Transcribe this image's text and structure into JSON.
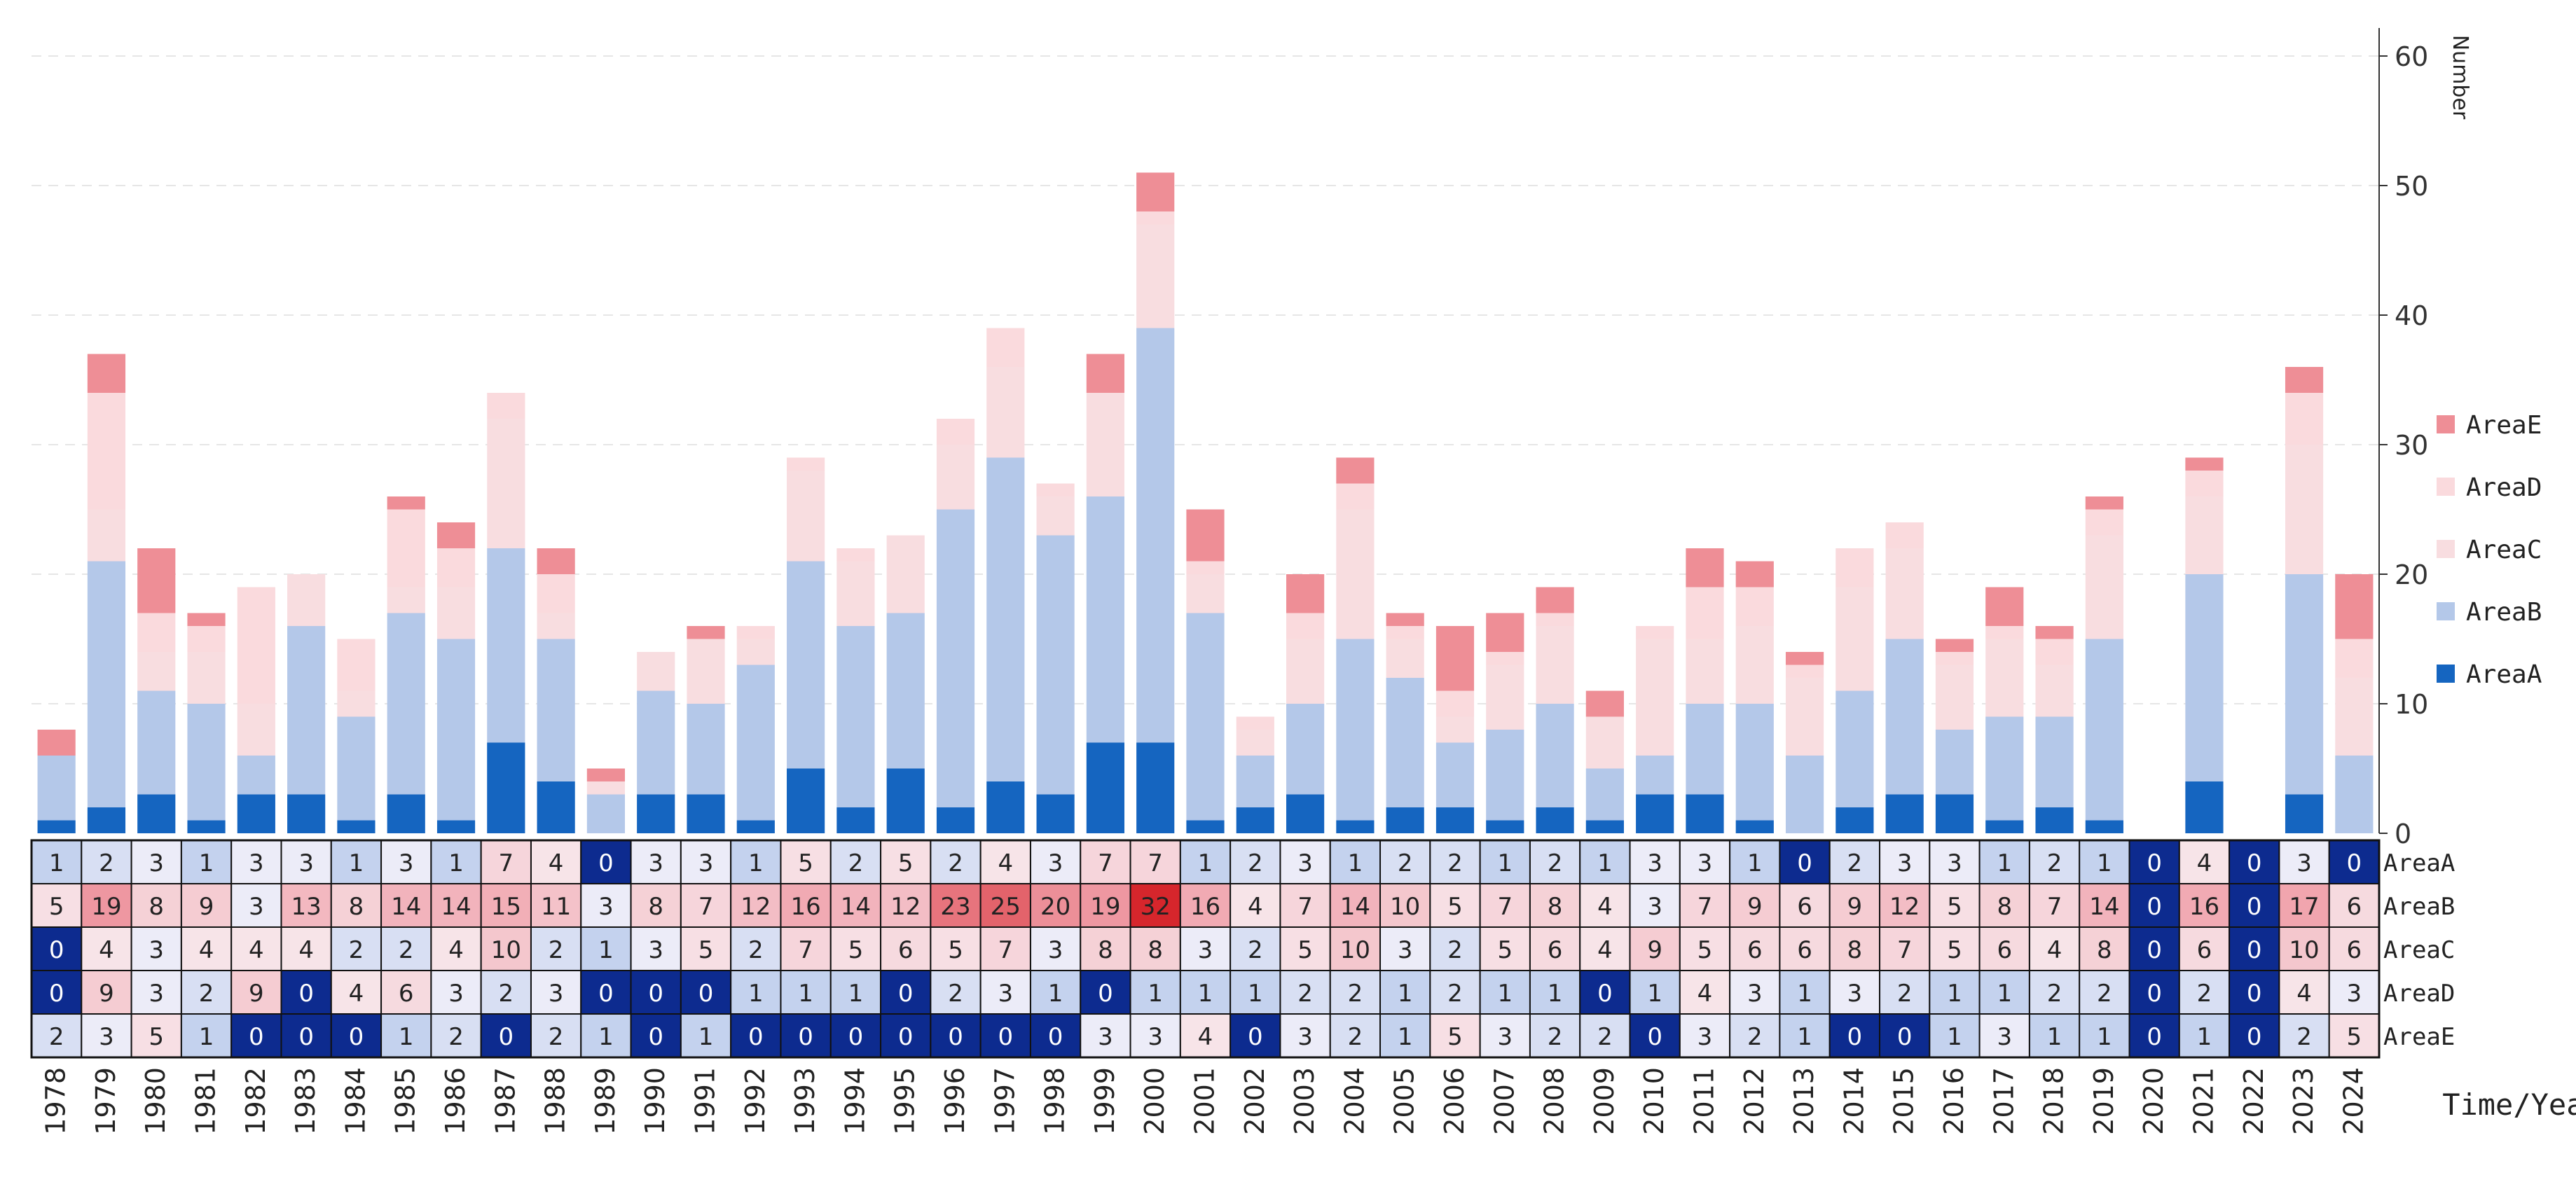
{
  "chart_data": {
    "type": "bar",
    "stacked": true,
    "title": "",
    "xlabel": "Time/Year",
    "ylabel": "Number",
    "ylim": [
      0,
      60
    ],
    "yticks": [
      0,
      10,
      20,
      30,
      40,
      50,
      60
    ],
    "grid": "horizontal dashed",
    "legend_position": "right",
    "categories": [
      "1978",
      "1979",
      "1980",
      "1981",
      "1982",
      "1983",
      "1984",
      "1985",
      "1986",
      "1987",
      "1988",
      "1989",
      "1990",
      "1991",
      "1992",
      "1993",
      "1994",
      "1995",
      "1996",
      "1997",
      "1998",
      "1999",
      "2000",
      "2001",
      "2002",
      "2003",
      "2004",
      "2005",
      "2006",
      "2007",
      "2008",
      "2009",
      "2010",
      "2011",
      "2012",
      "2013",
      "2014",
      "2015",
      "2016",
      "2017",
      "2018",
      "2019",
      "2020",
      "2021",
      "2022",
      "2023",
      "2024"
    ],
    "series": [
      {
        "name": "AreaA",
        "color": "#1565c0",
        "values": [
          1,
          2,
          3,
          1,
          3,
          3,
          1,
          3,
          1,
          7,
          4,
          0,
          3,
          3,
          1,
          5,
          2,
          5,
          2,
          4,
          3,
          7,
          7,
          1,
          2,
          3,
          1,
          2,
          2,
          1,
          2,
          1,
          3,
          3,
          1,
          0,
          2,
          3,
          3,
          1,
          2,
          1,
          0,
          4,
          0,
          3,
          0
        ]
      },
      {
        "name": "AreaB",
        "color": "#b4c8e9",
        "values": [
          5,
          19,
          8,
          9,
          3,
          13,
          8,
          14,
          14,
          15,
          11,
          3,
          8,
          7,
          12,
          16,
          14,
          12,
          23,
          25,
          20,
          19,
          32,
          16,
          4,
          7,
          14,
          10,
          5,
          7,
          8,
          4,
          3,
          7,
          9,
          6,
          9,
          12,
          5,
          8,
          7,
          14,
          0,
          16,
          0,
          17,
          6
        ]
      },
      {
        "name": "AreaC",
        "color": "#f8dde0",
        "values": [
          0,
          4,
          3,
          4,
          4,
          4,
          2,
          2,
          4,
          10,
          2,
          1,
          3,
          5,
          2,
          7,
          5,
          6,
          5,
          7,
          3,
          8,
          8,
          3,
          2,
          5,
          10,
          3,
          2,
          5,
          6,
          4,
          9,
          5,
          6,
          6,
          8,
          7,
          5,
          6,
          4,
          8,
          0,
          6,
          0,
          10,
          6
        ]
      },
      {
        "name": "AreaD",
        "color": "#fadadd",
        "values": [
          0,
          9,
          3,
          2,
          9,
          0,
          4,
          6,
          3,
          2,
          3,
          0,
          0,
          0,
          1,
          1,
          1,
          0,
          2,
          3,
          1,
          0,
          1,
          1,
          1,
          2,
          2,
          1,
          2,
          1,
          1,
          0,
          1,
          4,
          3,
          1,
          3,
          2,
          1,
          1,
          2,
          2,
          0,
          2,
          0,
          4,
          3
        ]
      },
      {
        "name": "AreaE",
        "color": "#ee8e96",
        "values": [
          2,
          3,
          5,
          1,
          0,
          0,
          0,
          1,
          2,
          0,
          2,
          1,
          0,
          1,
          0,
          0,
          0,
          0,
          0,
          0,
          0,
          3,
          3,
          4,
          0,
          3,
          2,
          1,
          5,
          3,
          2,
          2,
          0,
          3,
          2,
          1,
          0,
          0,
          1,
          3,
          1,
          1,
          0,
          1,
          0,
          2,
          5
        ]
      }
    ],
    "heatmap_rows": [
      "AreaA",
      "AreaB",
      "AreaC",
      "AreaD",
      "AreaE"
    ],
    "legend_order": [
      "AreaE",
      "AreaD",
      "AreaC",
      "AreaB",
      "AreaA"
    ]
  }
}
